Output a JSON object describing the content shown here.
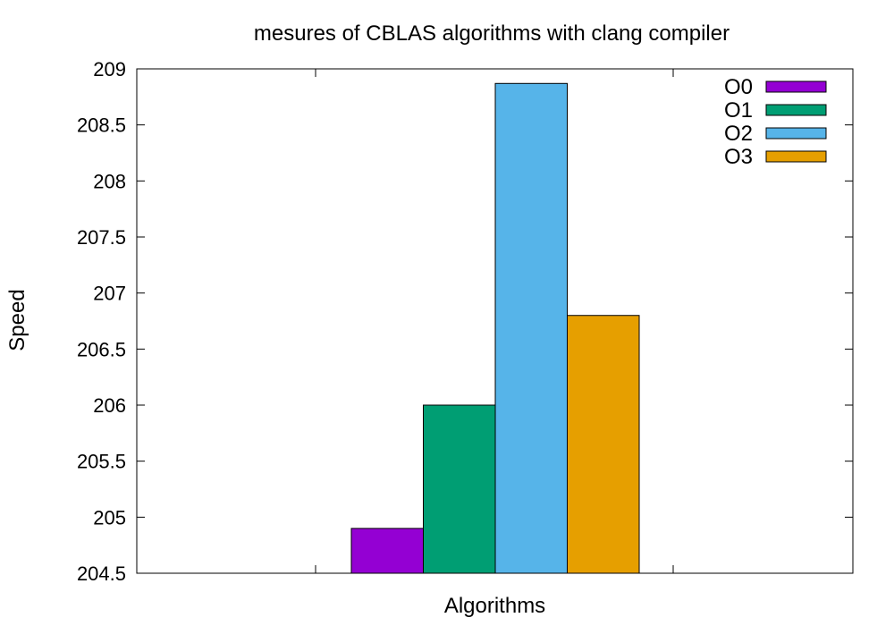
{
  "chart_data": {
    "type": "bar",
    "title": "mesures of CBLAS algorithms with clang compiler",
    "xlabel": "Algorithms",
    "ylabel": "Speed",
    "ylim": [
      204.5,
      209
    ],
    "yticks": [
      "204.5",
      "205",
      "205.5",
      "206",
      "206.5",
      "207",
      "207.5",
      "208",
      "208.5",
      "209"
    ],
    "legend_position": "top-right",
    "series": [
      {
        "name": "O0",
        "value": 204.9,
        "color": "#9400d3"
      },
      {
        "name": "O1",
        "value": 206.0,
        "color": "#009e73"
      },
      {
        "name": "O2",
        "value": 208.87,
        "color": "#56b4e9"
      },
      {
        "name": "O3",
        "value": 206.8,
        "color": "#e69f00"
      }
    ]
  }
}
